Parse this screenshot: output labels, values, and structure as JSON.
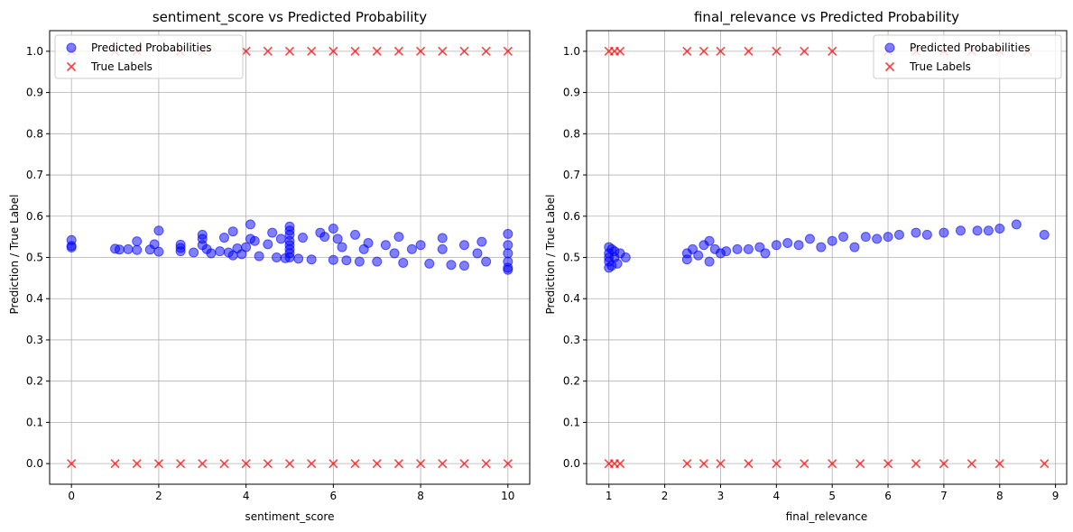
{
  "chart_data": [
    {
      "type": "scatter",
      "title": "sentiment_score vs Predicted Probability",
      "xlabel": "sentiment_score",
      "ylabel": "Prediction / True Label",
      "xlim": [
        -0.5,
        10.5
      ],
      "ylim": [
        -0.05,
        1.05
      ],
      "xticks": [
        0,
        2,
        4,
        6,
        8,
        10
      ],
      "yticks": [
        0.0,
        0.1,
        0.2,
        0.3,
        0.4,
        0.5,
        0.6,
        0.7,
        0.8,
        0.9,
        1.0
      ],
      "grid": true,
      "legend_position": "top-left",
      "series": [
        {
          "name": "Predicted Probabilities",
          "marker": "circle",
          "color": "#0000ff",
          "points": [
            [
              0,
              0.542
            ],
            [
              0,
              0.528
            ],
            [
              0,
              0.524
            ],
            [
              1,
              0.521
            ],
            [
              1.1,
              0.519
            ],
            [
              1.3,
              0.52
            ],
            [
              1.5,
              0.539
            ],
            [
              1.5,
              0.518
            ],
            [
              1.8,
              0.519
            ],
            [
              1.9,
              0.532
            ],
            [
              2,
              0.565
            ],
            [
              2,
              0.514
            ],
            [
              2.5,
              0.531
            ],
            [
              2.5,
              0.523
            ],
            [
              2.5,
              0.515
            ],
            [
              2.8,
              0.512
            ],
            [
              3,
              0.555
            ],
            [
              3,
              0.545
            ],
            [
              3,
              0.53
            ],
            [
              3.1,
              0.52
            ],
            [
              3.2,
              0.51
            ],
            [
              3.4,
              0.515
            ],
            [
              3.5,
              0.548
            ],
            [
              3.6,
              0.512
            ],
            [
              3.7,
              0.563
            ],
            [
              3.7,
              0.505
            ],
            [
              3.8,
              0.522
            ],
            [
              3.9,
              0.508
            ],
            [
              4,
              0.525
            ],
            [
              4.1,
              0.58
            ],
            [
              4.1,
              0.545
            ],
            [
              4.2,
              0.54
            ],
            [
              4.3,
              0.503
            ],
            [
              4.5,
              0.532
            ],
            [
              4.6,
              0.56
            ],
            [
              4.7,
              0.5
            ],
            [
              4.8,
              0.545
            ],
            [
              4.9,
              0.498
            ],
            [
              5,
              0.575
            ],
            [
              5,
              0.565
            ],
            [
              5,
              0.555
            ],
            [
              5,
              0.54
            ],
            [
              5,
              0.53
            ],
            [
              5,
              0.52
            ],
            [
              5,
              0.51
            ],
            [
              5,
              0.5
            ],
            [
              5.2,
              0.497
            ],
            [
              5.3,
              0.548
            ],
            [
              5.5,
              0.495
            ],
            [
              5.7,
              0.56
            ],
            [
              5.8,
              0.55
            ],
            [
              6,
              0.57
            ],
            [
              6,
              0.494
            ],
            [
              6.1,
              0.545
            ],
            [
              6.2,
              0.525
            ],
            [
              6.3,
              0.493
            ],
            [
              6.5,
              0.555
            ],
            [
              6.6,
              0.49
            ],
            [
              6.7,
              0.52
            ],
            [
              6.8,
              0.535
            ],
            [
              7,
              0.49
            ],
            [
              7.2,
              0.53
            ],
            [
              7.4,
              0.51
            ],
            [
              7.5,
              0.55
            ],
            [
              7.6,
              0.487
            ],
            [
              7.8,
              0.52
            ],
            [
              8,
              0.53
            ],
            [
              8.2,
              0.485
            ],
            [
              8.5,
              0.547
            ],
            [
              8.5,
              0.52
            ],
            [
              8.7,
              0.482
            ],
            [
              9,
              0.53
            ],
            [
              9,
              0.48
            ],
            [
              9.3,
              0.51
            ],
            [
              9.4,
              0.538
            ],
            [
              9.5,
              0.49
            ],
            [
              10,
              0.557
            ],
            [
              10,
              0.53
            ],
            [
              10,
              0.51
            ],
            [
              10,
              0.49
            ],
            [
              10,
              0.475
            ],
            [
              10,
              0.47
            ]
          ]
        },
        {
          "name": "True Labels",
          "marker": "x",
          "color": "#ff0000",
          "points": [
            [
              0,
              1
            ],
            [
              0,
              0
            ],
            [
              1,
              1
            ],
            [
              1,
              0
            ],
            [
              1.5,
              1
            ],
            [
              1.5,
              0
            ],
            [
              2,
              0
            ],
            [
              2.5,
              1
            ],
            [
              2.5,
              0
            ],
            [
              3,
              1
            ],
            [
              3,
              0
            ],
            [
              3.5,
              0
            ],
            [
              4,
              1
            ],
            [
              4,
              0
            ],
            [
              4.5,
              1
            ],
            [
              4.5,
              0
            ],
            [
              5,
              1
            ],
            [
              5,
              0
            ],
            [
              5.5,
              1
            ],
            [
              5.5,
              0
            ],
            [
              6,
              1
            ],
            [
              6,
              0
            ],
            [
              6.5,
              1
            ],
            [
              6.5,
              0
            ],
            [
              7,
              1
            ],
            [
              7,
              0
            ],
            [
              7.5,
              1
            ],
            [
              7.5,
              0
            ],
            [
              8,
              1
            ],
            [
              8,
              0
            ],
            [
              8.5,
              1
            ],
            [
              8.5,
              0
            ],
            [
              9,
              1
            ],
            [
              9,
              0
            ],
            [
              9.5,
              1
            ],
            [
              9.5,
              0
            ],
            [
              10,
              1
            ],
            [
              10,
              0
            ]
          ]
        }
      ]
    },
    {
      "type": "scatter",
      "title": "final_relevance vs Predicted Probability",
      "xlabel": "final_relevance",
      "ylabel": "Prediction / True Label",
      "xlim": [
        0.6,
        9.2
      ],
      "ylim": [
        -0.05,
        1.05
      ],
      "xticks": [
        1,
        2,
        3,
        4,
        5,
        6,
        7,
        8,
        9
      ],
      "yticks": [
        0.0,
        0.1,
        0.2,
        0.3,
        0.4,
        0.5,
        0.6,
        0.7,
        0.8,
        0.9,
        1.0
      ],
      "grid": true,
      "legend_position": "top-right",
      "series": [
        {
          "name": "Predicted Probabilities",
          "marker": "circle",
          "color": "#0000ff",
          "points": [
            [
              1,
              0.525
            ],
            [
              1,
              0.51
            ],
            [
              1,
              0.5
            ],
            [
              1,
              0.49
            ],
            [
              1,
              0.475
            ],
            [
              1.05,
              0.52
            ],
            [
              1.05,
              0.48
            ],
            [
              1.1,
              0.515
            ],
            [
              1.1,
              0.5
            ],
            [
              1.15,
              0.485
            ],
            [
              1.2,
              0.51
            ],
            [
              1.3,
              0.5
            ],
            [
              2.4,
              0.51
            ],
            [
              2.4,
              0.495
            ],
            [
              2.5,
              0.52
            ],
            [
              2.6,
              0.505
            ],
            [
              2.7,
              0.53
            ],
            [
              2.8,
              0.54
            ],
            [
              2.8,
              0.49
            ],
            [
              2.9,
              0.52
            ],
            [
              3,
              0.51
            ],
            [
              3.1,
              0.515
            ],
            [
              3.3,
              0.52
            ],
            [
              3.5,
              0.52
            ],
            [
              3.7,
              0.525
            ],
            [
              3.8,
              0.51
            ],
            [
              4,
              0.53
            ],
            [
              4.2,
              0.535
            ],
            [
              4.4,
              0.53
            ],
            [
              4.6,
              0.545
            ],
            [
              4.8,
              0.525
            ],
            [
              5,
              0.54
            ],
            [
              5.2,
              0.55
            ],
            [
              5.4,
              0.525
            ],
            [
              5.6,
              0.55
            ],
            [
              5.8,
              0.545
            ],
            [
              6,
              0.55
            ],
            [
              6.2,
              0.555
            ],
            [
              6.5,
              0.56
            ],
            [
              6.7,
              0.555
            ],
            [
              7,
              0.56
            ],
            [
              7.3,
              0.565
            ],
            [
              7.6,
              0.565
            ],
            [
              7.8,
              0.565
            ],
            [
              8,
              0.57
            ],
            [
              8.3,
              0.58
            ],
            [
              8.8,
              0.555
            ]
          ]
        },
        {
          "name": "True Labels",
          "marker": "x",
          "color": "#ff0000",
          "points": [
            [
              1,
              1
            ],
            [
              1,
              0
            ],
            [
              1.1,
              1
            ],
            [
              1.1,
              0
            ],
            [
              1.2,
              1
            ],
            [
              1.2,
              0
            ],
            [
              2.4,
              1
            ],
            [
              2.4,
              0
            ],
            [
              2.7,
              1
            ],
            [
              2.7,
              0
            ],
            [
              3,
              1
            ],
            [
              3,
              0
            ],
            [
              3.5,
              1
            ],
            [
              3.5,
              0
            ],
            [
              4,
              1
            ],
            [
              4,
              0
            ],
            [
              4.5,
              1
            ],
            [
              4.5,
              0
            ],
            [
              5,
              1
            ],
            [
              5,
              0
            ],
            [
              5.5,
              0
            ],
            [
              6,
              1
            ],
            [
              6,
              0
            ],
            [
              6.5,
              1
            ],
            [
              6.5,
              0
            ],
            [
              7,
              1
            ],
            [
              7,
              0
            ],
            [
              7.5,
              1
            ],
            [
              7.5,
              0
            ],
            [
              8,
              1
            ],
            [
              8,
              0
            ],
            [
              8.5,
              1
            ],
            [
              8.8,
              0
            ]
          ]
        }
      ]
    }
  ]
}
